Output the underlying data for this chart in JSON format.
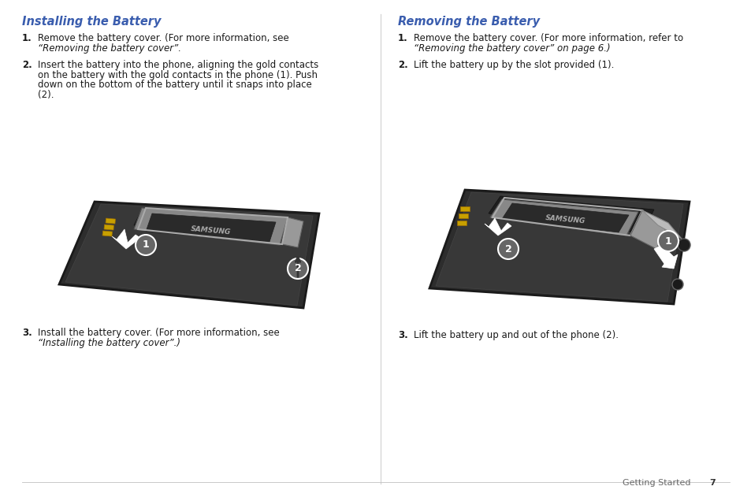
{
  "background_color": "#ffffff",
  "left_section": {
    "title": "Installing the Battery",
    "title_color": "#3a5dae",
    "steps": [
      {
        "num": "1.",
        "lines": [
          {
            "text": "Remove the battery cover. (For more information, see",
            "italic": false
          },
          {
            "text": "“Removing the battery cover”.",
            "italic": true
          }
        ]
      },
      {
        "num": "2.",
        "lines": [
          {
            "text": "Insert the battery into the phone, aligning the gold contacts",
            "italic": false
          },
          {
            "text": "on the battery with the gold contacts in the phone (1). Push",
            "italic": false
          },
          {
            "text": "down on the bottom of the battery until it snaps into place",
            "italic": false
          },
          {
            "text": "(2).",
            "italic": false
          }
        ]
      },
      {
        "num": "3.",
        "lines": [
          {
            "text": "Install the battery cover. (For more information, see",
            "italic": false
          },
          {
            "text": "“Installing the battery cover”.)",
            "italic": true
          }
        ]
      }
    ]
  },
  "right_section": {
    "title": "Removing the Battery",
    "title_color": "#3a5dae",
    "steps": [
      {
        "num": "1.",
        "lines": [
          {
            "text": "Remove the battery cover. (For more information, refer to",
            "italic": false
          },
          {
            "text": "“Removing the battery cover” on page 6.)",
            "italic": true
          }
        ]
      },
      {
        "num": "2.",
        "lines": [
          {
            "text": "Lift the battery up by the slot provided (1).",
            "italic": false
          }
        ]
      },
      {
        "num": "3.",
        "lines": [
          {
            "text": "Lift the battery up and out of the phone (2).",
            "italic": false
          }
        ]
      }
    ]
  },
  "footer_text": "Getting Started",
  "footer_page": "7",
  "font_size_title": 10.5,
  "font_size_body": 8.5,
  "font_size_footer": 8
}
